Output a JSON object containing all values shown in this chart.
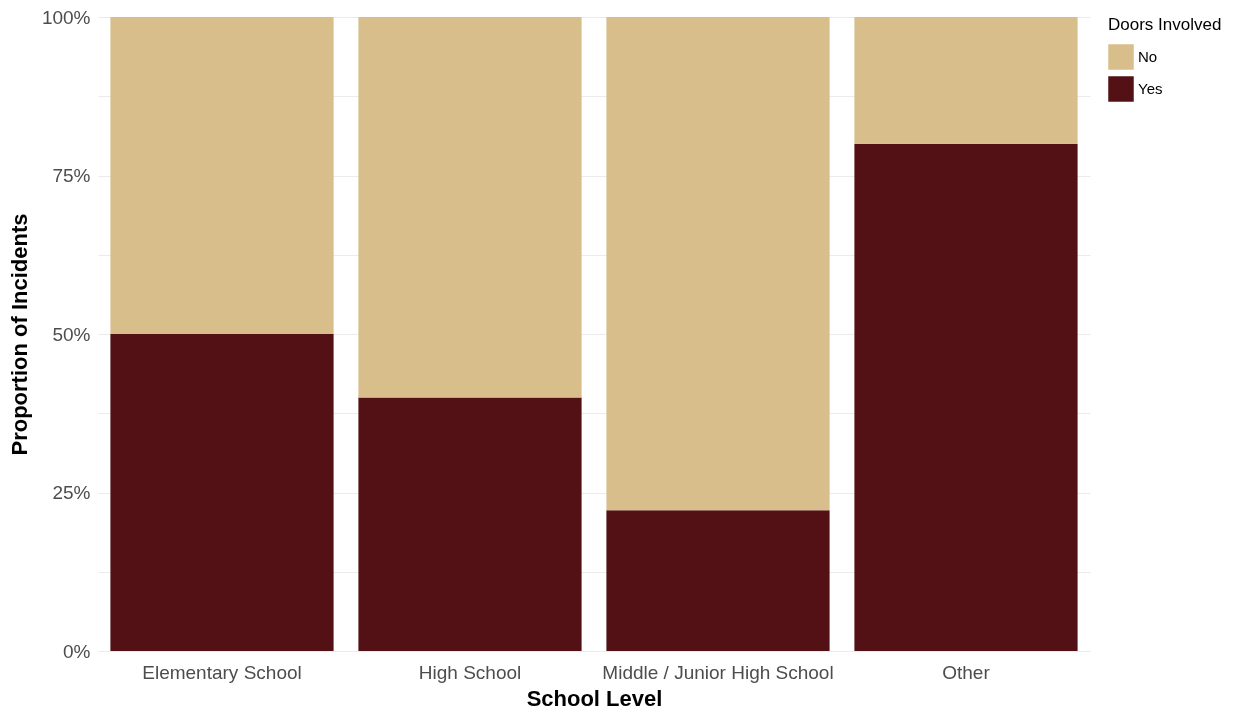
{
  "chart_data": {
    "type": "bar",
    "stacked": true,
    "xlabel": "School Level",
    "ylabel": "Proportion of Incidents",
    "legend_title": "Doors Involved",
    "categories": [
      "Elementary School",
      "High School",
      "Middle / Junior High School",
      "Other"
    ],
    "series": [
      {
        "name": "Yes",
        "color": "#531116",
        "values": [
          50,
          40,
          22.2,
          80
        ]
      },
      {
        "name": "No",
        "color": "#d8be8a",
        "values": [
          50,
          60,
          77.8,
          20
        ]
      }
    ],
    "ylim": [
      0,
      100
    ],
    "yticks": [
      {
        "value": 0,
        "label": "0%"
      },
      {
        "value": 12.5,
        "label": null
      },
      {
        "value": 25,
        "label": "25%"
      },
      {
        "value": 37.5,
        "label": null
      },
      {
        "value": 50,
        "label": "50%"
      },
      {
        "value": 62.5,
        "label": null
      },
      {
        "value": 75,
        "label": "75%"
      },
      {
        "value": 87.5,
        "label": null
      },
      {
        "value": 100,
        "label": "100%"
      }
    ],
    "grid": "y",
    "legend": "right"
  }
}
